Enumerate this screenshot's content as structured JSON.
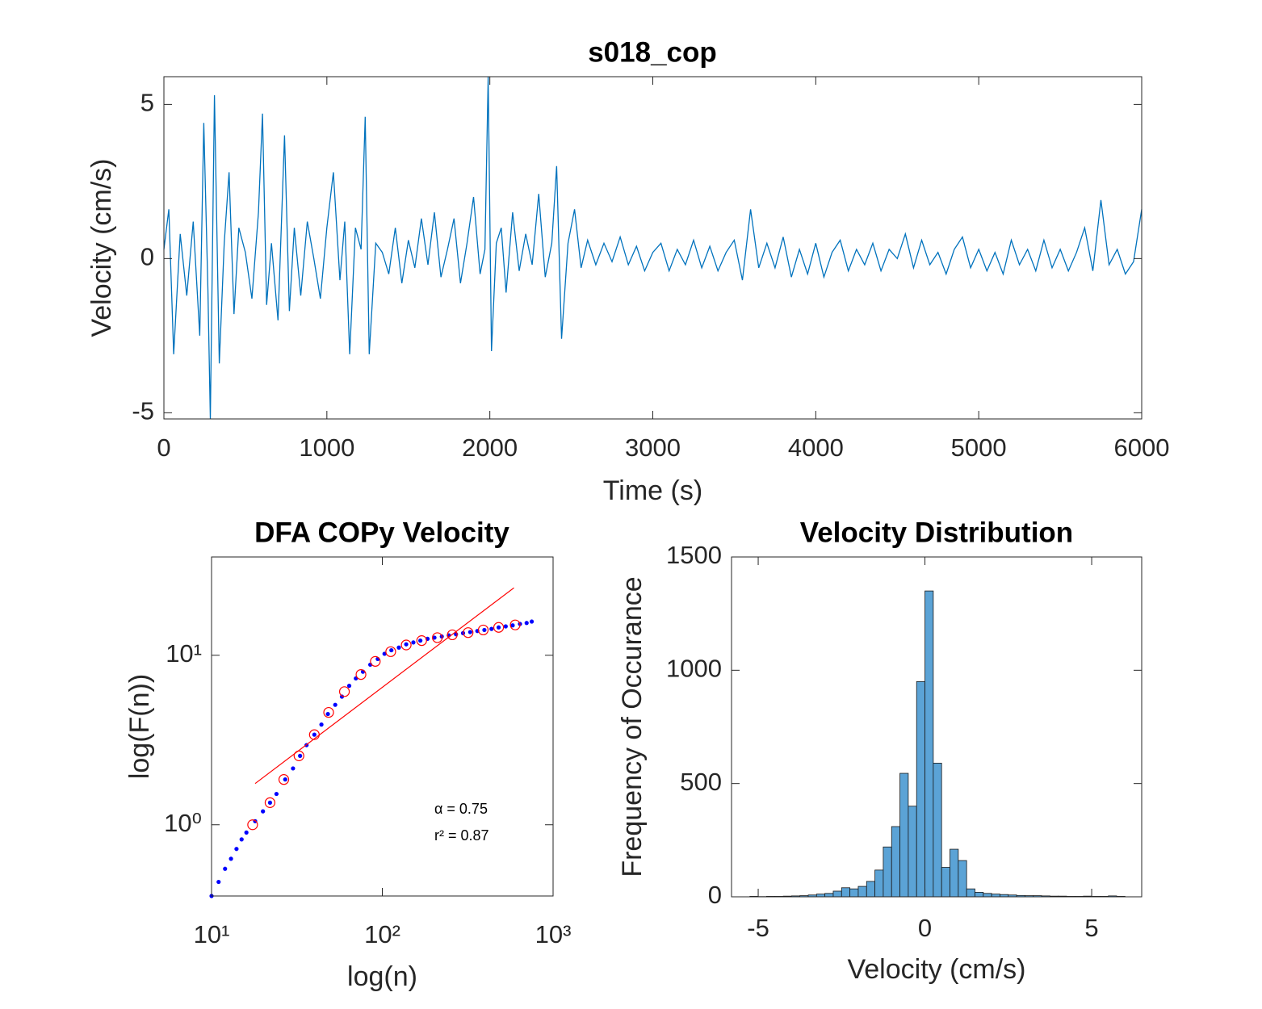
{
  "chart_data": [
    {
      "type": "line",
      "title": "s018_cop",
      "x_label": "Time (s)",
      "y_label": "Velocity (cm/s)",
      "color": "#0072bd",
      "xlim": [
        0,
        6000
      ],
      "ylim": [
        -5.2,
        5.9
      ],
      "xticks": [
        0,
        1000,
        2000,
        3000,
        4000,
        5000,
        6000
      ],
      "yticks": [
        -5,
        0,
        5
      ],
      "x": [
        0,
        30,
        60,
        100,
        140,
        180,
        220,
        245,
        270,
        285,
        310,
        340,
        370,
        400,
        430,
        460,
        500,
        540,
        580,
        605,
        630,
        660,
        700,
        740,
        770,
        800,
        840,
        880,
        920,
        960,
        1000,
        1040,
        1080,
        1110,
        1140,
        1175,
        1210,
        1235,
        1260,
        1300,
        1340,
        1380,
        1420,
        1460,
        1500,
        1540,
        1580,
        1620,
        1660,
        1700,
        1740,
        1780,
        1820,
        1860,
        1900,
        1940,
        1970,
        1990,
        2010,
        2040,
        2070,
        2100,
        2140,
        2180,
        2220,
        2260,
        2300,
        2340,
        2380,
        2410,
        2440,
        2480,
        2520,
        2560,
        2600,
        2650,
        2700,
        2750,
        2800,
        2850,
        2900,
        2950,
        3000,
        3050,
        3100,
        3150,
        3200,
        3250,
        3300,
        3350,
        3400,
        3450,
        3500,
        3550,
        3600,
        3650,
        3700,
        3750,
        3800,
        3850,
        3900,
        3950,
        4000,
        4050,
        4100,
        4150,
        4200,
        4250,
        4300,
        4350,
        4400,
        4450,
        4500,
        4550,
        4600,
        4650,
        4700,
        4750,
        4800,
        4850,
        4900,
        4950,
        5000,
        5050,
        5100,
        5150,
        5200,
        5250,
        5300,
        5350,
        5400,
        5450,
        5500,
        5550,
        5600,
        5650,
        5700,
        5750,
        5800,
        5850,
        5900,
        5950,
        6000
      ],
      "values": [
        0.3,
        1.6,
        -3.1,
        0.8,
        -1.2,
        1.2,
        -2.5,
        4.4,
        -1.0,
        -5.2,
        5.3,
        -3.4,
        0.5,
        2.8,
        -1.8,
        1.0,
        0.2,
        -1.3,
        1.5,
        4.7,
        -1.5,
        0.5,
        -2.0,
        4.0,
        -1.7,
        1.0,
        -1.2,
        1.2,
        0.0,
        -1.3,
        1.0,
        2.8,
        -0.7,
        1.2,
        -3.1,
        1.0,
        0.3,
        4.6,
        -3.1,
        0.5,
        0.2,
        -0.5,
        1.0,
        -0.8,
        0.6,
        -0.3,
        1.3,
        -0.2,
        1.5,
        -0.6,
        0.3,
        1.3,
        -0.8,
        0.5,
        2.0,
        -0.5,
        0.3,
        5.9,
        -3.0,
        0.5,
        1.0,
        -1.1,
        1.5,
        -0.4,
        0.8,
        -0.2,
        2.1,
        -0.6,
        0.5,
        3.0,
        -2.6,
        0.5,
        1.6,
        -0.3,
        0.6,
        -0.2,
        0.5,
        -0.1,
        0.7,
        -0.2,
        0.4,
        -0.4,
        0.2,
        0.5,
        -0.4,
        0.3,
        -0.2,
        0.6,
        -0.3,
        0.4,
        -0.4,
        0.2,
        0.6,
        -0.7,
        1.6,
        -0.3,
        0.5,
        -0.3,
        0.7,
        -0.6,
        0.3,
        -0.5,
        0.5,
        -0.6,
        0.2,
        0.6,
        -0.4,
        0.3,
        -0.2,
        0.5,
        -0.4,
        0.3,
        0.0,
        0.8,
        -0.3,
        0.6,
        -0.2,
        0.2,
        -0.5,
        0.3,
        0.7,
        -0.3,
        0.3,
        -0.4,
        0.2,
        -0.5,
        0.6,
        -0.2,
        0.3,
        -0.4,
        0.6,
        -0.3,
        0.3,
        -0.4,
        0.2,
        1.0,
        -0.4,
        1.9,
        -0.2,
        0.3,
        -0.5,
        -0.1,
        1.6
      ]
    },
    {
      "type": "scatter",
      "title": "DFA COPy Velocity",
      "x_label": "log(n)",
      "y_label": "log(F(n))",
      "xscale": "log",
      "yscale": "log",
      "xlim": [
        10,
        1000
      ],
      "ylim": [
        0.38,
        38
      ],
      "xticks": [
        {
          "value": 10,
          "label": "10¹"
        },
        {
          "value": 100,
          "label": "10²"
        },
        {
          "value": 1000,
          "label": "10³"
        }
      ],
      "yticks": [
        {
          "value": 1,
          "label": "10⁰"
        },
        {
          "value": 10,
          "label": "10¹"
        }
      ],
      "annotations": [
        "α = 0.75",
        "r² = 0.87"
      ],
      "series": [
        {
          "marker": "dot",
          "color": "#0000ff",
          "x": [
            10,
            11,
            12,
            13,
            14,
            15,
            16,
            18,
            20,
            22,
            24,
            27,
            30,
            33,
            36,
            40,
            44,
            48,
            53,
            58,
            64,
            70,
            77,
            85,
            94,
            103,
            113,
            125,
            138,
            152,
            167,
            184,
            202,
            223,
            245,
            270,
            297,
            327,
            360,
            396,
            436,
            480,
            528,
            580,
            640,
            700,
            750
          ],
          "values": [
            0.38,
            0.46,
            0.55,
            0.63,
            0.72,
            0.82,
            0.9,
            1.05,
            1.2,
            1.35,
            1.52,
            1.85,
            2.15,
            2.55,
            2.95,
            3.4,
            3.9,
            4.5,
            5.1,
            5.7,
            6.6,
            7.3,
            8.0,
            8.8,
            9.5,
            10.2,
            10.7,
            11.1,
            11.6,
            11.9,
            12.2,
            12.5,
            12.7,
            12.9,
            13.1,
            13.3,
            13.5,
            13.7,
            13.9,
            14.1,
            14.3,
            14.6,
            14.8,
            15.0,
            15.3,
            15.5,
            15.8
          ]
        },
        {
          "marker": "circle",
          "color": "#ff0000",
          "x": [
            17.4,
            22,
            26.5,
            32.5,
            40,
            48.5,
            60,
            75,
            91,
            112,
            138,
            170,
            210,
            257,
            318,
            390,
            480,
            600
          ],
          "values": [
            1.0,
            1.35,
            1.85,
            2.55,
            3.4,
            4.6,
            6.1,
            7.7,
            9.2,
            10.5,
            11.5,
            12.2,
            12.7,
            13.2,
            13.6,
            14.1,
            14.6,
            15.1
          ]
        },
        {
          "marker": "line",
          "color": "#ff0000",
          "x": [
            18,
            590
          ],
          "values": [
            1.75,
            25
          ]
        }
      ]
    },
    {
      "type": "histogram",
      "title": "Velocity Distribution",
      "x_label": "Velocity (cm/s)",
      "y_label": "Frequency of Occurance",
      "color": "#5ba3d6",
      "xlim": [
        -5.8,
        6.5
      ],
      "ylim": [
        0,
        1500
      ],
      "xticks": [
        -5,
        0,
        5
      ],
      "yticks": [
        0,
        500,
        1000,
        1500
      ],
      "bins": [
        -5.25,
        -5,
        -4.75,
        -4.5,
        -4.25,
        -4,
        -3.75,
        -3.5,
        -3.25,
        -3,
        -2.75,
        -2.5,
        -2.25,
        -2,
        -1.75,
        -1.5,
        -1.25,
        -1,
        -0.75,
        -0.5,
        -0.25,
        0,
        0.25,
        0.5,
        0.75,
        1,
        1.25,
        1.5,
        1.75,
        2,
        2.25,
        2.5,
        2.75,
        3,
        3.25,
        3.5,
        3.75,
        4,
        4.25,
        4.5,
        4.75,
        5,
        5.25,
        5.5,
        5.75,
        6
      ],
      "values": [
        2,
        1,
        2,
        2,
        3,
        4,
        5,
        8,
        12,
        15,
        25,
        40,
        35,
        46,
        68,
        118,
        220,
        310,
        545,
        400,
        950,
        1350,
        590,
        130,
        210,
        160,
        35,
        20,
        15,
        12,
        10,
        8,
        6,
        5,
        5,
        4,
        3,
        3,
        2,
        2,
        3,
        2,
        2,
        4,
        2
      ]
    }
  ]
}
